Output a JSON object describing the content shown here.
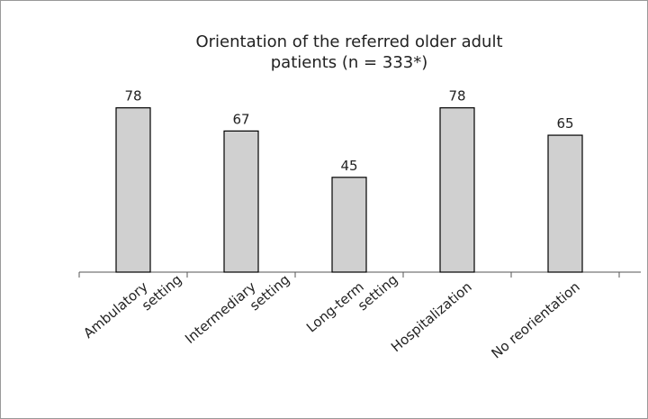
{
  "chart_data": {
    "type": "bar",
    "title": [
      "Orientation of the referred older adult",
      "patients (n = 333*)"
    ],
    "categories": [
      [
        "Ambulatory",
        "setting"
      ],
      [
        "Intermediary",
        "setting"
      ],
      [
        "Long-term",
        "setting"
      ],
      [
        "Hospitalization"
      ],
      [
        "No reorientation"
      ]
    ],
    "values": [
      78,
      67,
      45,
      78,
      65
    ],
    "color": "#d0d0d0",
    "ylim": [
      0,
      80
    ]
  }
}
